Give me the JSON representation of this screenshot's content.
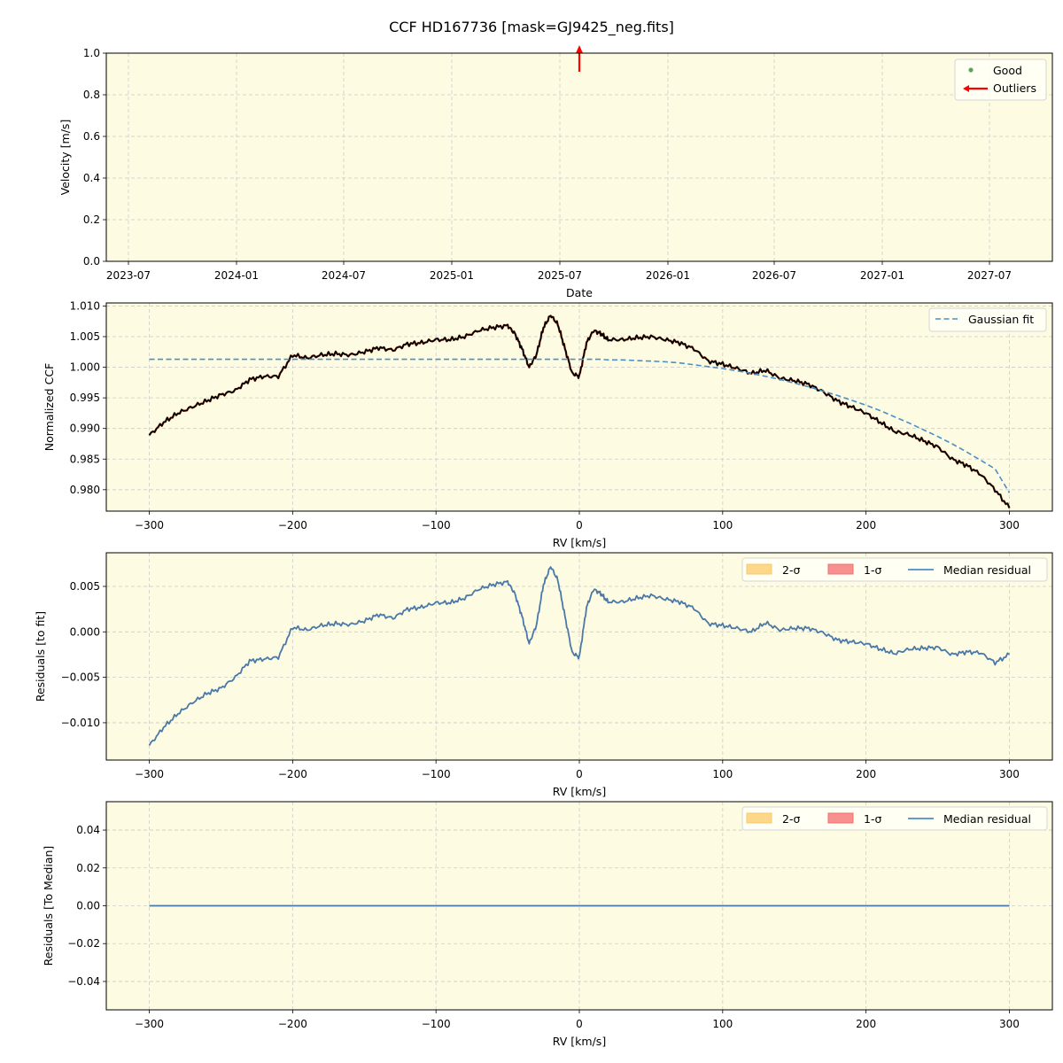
{
  "figure": {
    "title": "CCF HD167736 [mask=GJ9425_neg.fits]",
    "background": "#ffffff",
    "axes_facecolor": "#fdfbe1",
    "grid_color": "#cccccc"
  },
  "chart_data": [
    {
      "id": "velocity",
      "type": "scatter",
      "title": "",
      "xlabel": "Date",
      "ylabel": "Velocity [m/s]",
      "ylim": [
        0.0,
        1.0
      ],
      "xticks": [
        "2023-07",
        "2024-01",
        "2024-07",
        "2025-01",
        "2025-07",
        "2026-01",
        "2026-07",
        "2027-01",
        "2027-07"
      ],
      "yticks": [
        "0.0",
        "0.2",
        "0.4",
        "0.6",
        "0.8",
        "1.0"
      ],
      "grid": true,
      "legend": {
        "position": "upper right",
        "entries": [
          {
            "label": "Good",
            "marker": "dot",
            "color": "#5fa55a"
          },
          {
            "label": "Outliers",
            "marker": "arrow-left",
            "color": "#ff0000"
          }
        ]
      },
      "series": [
        {
          "name": "Good",
          "points": []
        },
        {
          "name": "Outliers",
          "points": [
            {
              "x": "2025-08",
              "y": "above 1.0 (upward arrow)"
            }
          ]
        }
      ]
    },
    {
      "id": "ccf",
      "type": "line",
      "xlabel": "RV [km/s]",
      "ylabel": "Normalized CCF",
      "xlim": [
        -330,
        330
      ],
      "ylim": [
        0.9765,
        1.0105
      ],
      "xticks": [
        "−300",
        "−200",
        "−100",
        "0",
        "100",
        "200",
        "300"
      ],
      "yticks": [
        "0.980",
        "0.985",
        "0.990",
        "0.995",
        "1.000",
        "1.005",
        "1.010"
      ],
      "grid": true,
      "legend": {
        "position": "upper right",
        "entries": [
          {
            "label": "Gaussian fit",
            "style": "dashed",
            "color": "#4c8fc5"
          }
        ]
      },
      "x": [
        -300,
        -290,
        -280,
        -270,
        -260,
        -250,
        -240,
        -230,
        -220,
        -210,
        -200,
        -190,
        -180,
        -170,
        -160,
        -150,
        -140,
        -130,
        -120,
        -110,
        -100,
        -90,
        -80,
        -70,
        -60,
        -50,
        -45,
        -40,
        -35,
        -30,
        -25,
        -20,
        -15,
        -10,
        -5,
        0,
        5,
        10,
        15,
        20,
        30,
        40,
        50,
        60,
        70,
        80,
        90,
        100,
        110,
        120,
        130,
        140,
        150,
        160,
        170,
        180,
        190,
        200,
        210,
        220,
        230,
        240,
        250,
        260,
        270,
        280,
        290,
        300
      ],
      "series": [
        {
          "name": "CCF",
          "color": "#000000",
          "values": [
            0.9889,
            0.991,
            0.9925,
            0.9935,
            0.9945,
            0.9955,
            0.9962,
            0.998,
            0.9985,
            0.9985,
            1.002,
            1.0015,
            1.002,
            1.0022,
            1.002,
            1.0025,
            1.0032,
            1.0028,
            1.0038,
            1.004,
            1.0045,
            1.0045,
            1.005,
            1.006,
            1.0065,
            1.0068,
            1.0055,
            1.003,
            1.0,
            1.002,
            1.0065,
            1.0085,
            1.007,
            1.003,
            0.999,
            0.9985,
            1.004,
            1.006,
            1.0055,
            1.0045,
            1.0045,
            1.0048,
            1.005,
            1.0045,
            1.004,
            1.003,
            1.001,
            1.0005,
            0.9998,
            0.999,
            0.9995,
            0.9982,
            0.9978,
            0.9972,
            0.996,
            0.9945,
            0.9935,
            0.9925,
            0.991,
            0.9895,
            0.989,
            0.988,
            0.987,
            0.985,
            0.984,
            0.9825,
            0.98,
            0.977
          ]
        },
        {
          "name": "Gaussian fit",
          "color": "#4c8fc5",
          "dashed": true,
          "values": [
            1.0013,
            1.0013,
            1.0013,
            1.0013,
            1.0013,
            1.0013,
            1.0013,
            1.0013,
            1.0013,
            1.0013,
            1.0013,
            1.0013,
            1.0013,
            1.0013,
            1.0013,
            1.0013,
            1.0013,
            1.0013,
            1.0013,
            1.0013,
            1.0013,
            1.0013,
            1.0013,
            1.0013,
            1.0013,
            1.0013,
            1.0013,
            1.0013,
            1.0013,
            1.0013,
            1.0013,
            1.0013,
            1.0013,
            1.0013,
            1.0013,
            1.0013,
            1.0013,
            1.0013,
            1.0013,
            1.0012,
            1.0012,
            1.0011,
            1.001,
            1.0009,
            1.0007,
            1.0004,
            1.0001,
            0.9998,
            0.9994,
            0.999,
            0.9985,
            0.998,
            0.9974,
            0.9968,
            0.9961,
            0.9954,
            0.9946,
            0.9938,
            0.9929,
            0.9919,
            0.9909,
            0.9898,
            0.9887,
            0.9875,
            0.9862,
            0.9848,
            0.9834,
            0.9795
          ]
        }
      ]
    },
    {
      "id": "residuals-to-fit",
      "type": "line",
      "xlabel": "RV [km/s]",
      "ylabel": "Residuals [to fit]",
      "xlim": [
        -330,
        330
      ],
      "ylim": [
        -0.0141,
        0.0087
      ],
      "xticks": [
        "−300",
        "−200",
        "−100",
        "0",
        "100",
        "200",
        "300"
      ],
      "yticks": [
        "−0.010",
        "−0.005",
        "0.000",
        "0.005"
      ],
      "grid": true,
      "legend": {
        "position": "upper right",
        "ncol": 3,
        "entries": [
          {
            "label": "2-σ",
            "type": "patch",
            "color": "#fdd78a"
          },
          {
            "label": "1-σ",
            "type": "patch",
            "color": "#f99090"
          },
          {
            "label": "Median residual",
            "type": "line",
            "color": "#4c8fc5"
          }
        ]
      },
      "x": [
        -300,
        -290,
        -280,
        -270,
        -260,
        -250,
        -240,
        -230,
        -220,
        -210,
        -200,
        -190,
        -180,
        -170,
        -160,
        -150,
        -140,
        -130,
        -120,
        -110,
        -100,
        -90,
        -80,
        -70,
        -60,
        -50,
        -45,
        -40,
        -35,
        -30,
        -25,
        -20,
        -15,
        -10,
        -5,
        0,
        5,
        10,
        15,
        20,
        30,
        40,
        50,
        60,
        70,
        80,
        90,
        100,
        110,
        120,
        130,
        140,
        150,
        160,
        170,
        180,
        190,
        200,
        210,
        220,
        230,
        240,
        250,
        260,
        270,
        280,
        290,
        300
      ],
      "series": [
        {
          "name": "Median residual",
          "color": "#4a78a8",
          "values": [
            -0.0125,
            -0.0105,
            -0.009,
            -0.0078,
            -0.0068,
            -0.0062,
            -0.005,
            -0.0032,
            -0.003,
            -0.0028,
            0.0005,
            0.0002,
            0.0007,
            0.0009,
            0.0008,
            0.0012,
            0.0019,
            0.0015,
            0.0025,
            0.0027,
            0.0032,
            0.0032,
            0.0037,
            0.0047,
            0.0052,
            0.0055,
            0.0042,
            0.0017,
            -0.0013,
            0.0007,
            0.0052,
            0.0072,
            0.0057,
            0.0017,
            -0.0023,
            -0.0028,
            0.0027,
            0.0047,
            0.0042,
            0.0033,
            0.0033,
            0.0037,
            0.004,
            0.0036,
            0.0033,
            0.0026,
            0.0009,
            0.0007,
            0.0004,
            0.0,
            0.001,
            0.0002,
            0.0004,
            0.0004,
            -0.0001,
            -0.0009,
            -0.0011,
            -0.0013,
            -0.0019,
            -0.0024,
            -0.0019,
            -0.0018,
            -0.0017,
            -0.0025,
            -0.0022,
            -0.0023,
            -0.0034,
            -0.0025
          ]
        }
      ]
    },
    {
      "id": "residuals-to-median",
      "type": "line",
      "xlabel": "RV [km/s]",
      "ylabel": "Residuals [To Median]",
      "xlim": [
        -330,
        330
      ],
      "ylim": [
        -0.055,
        0.055
      ],
      "xticks": [
        "−300",
        "−200",
        "−100",
        "0",
        "100",
        "200",
        "300"
      ],
      "yticks": [
        "−0.04",
        "−0.02",
        "0.00",
        "0.02",
        "0.04"
      ],
      "grid": true,
      "legend": {
        "position": "upper right",
        "ncol": 3,
        "entries": [
          {
            "label": "2-σ",
            "type": "patch",
            "color": "#fdd78a"
          },
          {
            "label": "1-σ",
            "type": "patch",
            "color": "#f99090"
          },
          {
            "label": "Median residual",
            "type": "line",
            "color": "#4c8fc5"
          }
        ]
      },
      "x": [
        -300,
        300
      ],
      "series": [
        {
          "name": "Median residual",
          "color": "#4a78a8",
          "values": [
            0.0,
            0.0
          ]
        }
      ]
    }
  ]
}
